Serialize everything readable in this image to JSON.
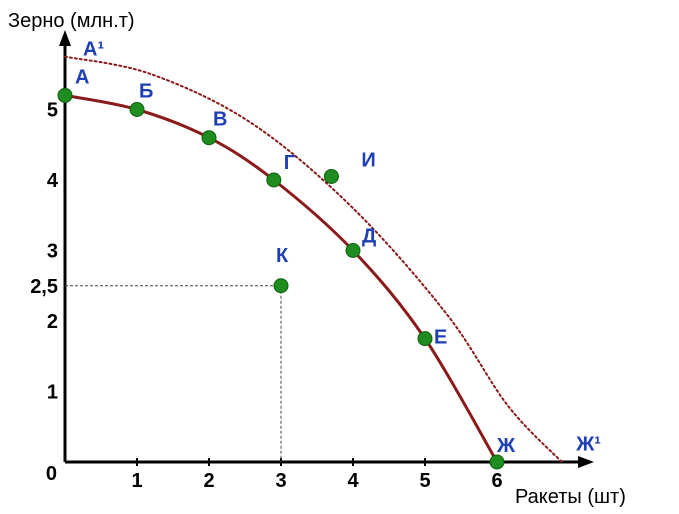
{
  "chart_data": {
    "type": "line",
    "xlabel": "Ракеты (шт)",
    "ylabel": "Зерно (млн.т)",
    "xlim": [
      0,
      7
    ],
    "ylim": [
      0,
      5.8
    ],
    "x_ticks": [
      "1",
      "2",
      "3",
      "4",
      "5",
      "6"
    ],
    "y_ticks": [
      "1",
      "2",
      "3",
      "4",
      "5"
    ],
    "origin_label": "0",
    "extra_y_tick": "2,5",
    "series": [
      {
        "values": [
          {
            "x": 0,
            "y": 5.2
          },
          {
            "x": 1,
            "y": 5.0
          },
          {
            "x": 2,
            "y": 4.6
          },
          {
            "x": 2.9,
            "y": 4.0
          },
          {
            "x": 4.0,
            "y": 3.0
          },
          {
            "x": 5.0,
            "y": 1.75
          },
          {
            "x": 6.0,
            "y": 0
          }
        ],
        "line_style": "solid"
      },
      {
        "values": [
          {
            "x": 0,
            "y": 5.75
          },
          {
            "x": 1.2,
            "y": 5.5
          },
          {
            "x": 2.6,
            "y": 4.8
          },
          {
            "x": 4.0,
            "y": 3.6
          },
          {
            "x": 5.3,
            "y": 2.1
          },
          {
            "x": 6.15,
            "y": 0.8
          },
          {
            "x": 6.9,
            "y": 0
          }
        ],
        "line_style": "dotted"
      }
    ],
    "points": [
      {
        "label": "А",
        "x": 0,
        "y": 5.2
      },
      {
        "label": "Б",
        "x": 1.0,
        "y": 5.0
      },
      {
        "label": "В",
        "x": 2.0,
        "y": 4.6
      },
      {
        "label": "Г",
        "x": 2.9,
        "y": 4.0
      },
      {
        "label": "И",
        "x": 3.7,
        "y": 4.05
      },
      {
        "label": "Д",
        "x": 4.0,
        "y": 3.0
      },
      {
        "label": "К",
        "x": 3.0,
        "y": 2.5
      },
      {
        "label": "Е",
        "x": 5.0,
        "y": 1.75
      },
      {
        "label": "Ж",
        "x": 6.0,
        "y": 0
      }
    ],
    "extra_labels": [
      {
        "label": "А¹",
        "x": 0.25,
        "y": 5.85
      },
      {
        "label": "Ж¹",
        "x": 7.1,
        "y": 0.25
      }
    ],
    "guide": {
      "x": 3.0,
      "y": 2.5
    },
    "colors": {
      "curve": "#8b1a1a",
      "outer_curve": "#8b1a1a",
      "point": "#1e8c1e",
      "point_label": "#1f3fb4",
      "axis": "#000000"
    }
  }
}
